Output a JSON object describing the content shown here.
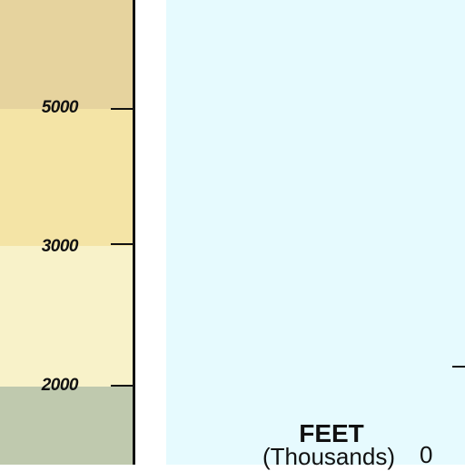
{
  "legend": {
    "elevation_labels": [
      "5000",
      "3000",
      "2000"
    ],
    "band_colors": [
      "#e6d39e",
      "#f4e4a6",
      "#f8f2c9",
      "#bfc9ae"
    ]
  },
  "depth_scale": {
    "title": "FEET",
    "unit": "(Thousands)",
    "zero_label": "0"
  },
  "colors": {
    "water": "#e6fafe",
    "line": "#111111"
  }
}
